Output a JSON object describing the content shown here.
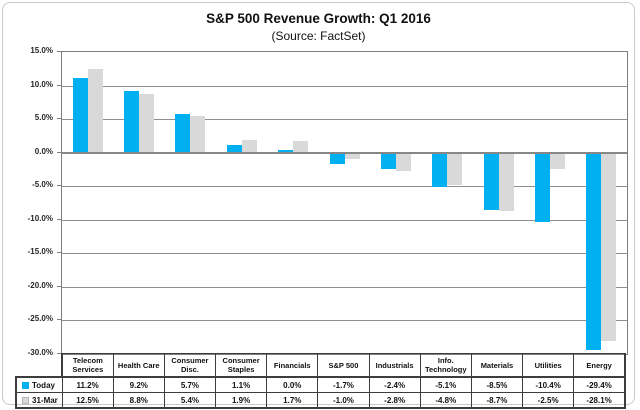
{
  "title": "S&P 500 Revenue Growth: Q1 2016",
  "subtitle": "(Source: FactSet)",
  "chart_data": {
    "type": "bar",
    "title": "S&P 500 Revenue Growth: Q1 2016",
    "subtitle": "(Source: FactSet)",
    "categories": [
      "Telecom Services",
      "Health Care",
      "Consumer Disc.",
      "Consumer Staples",
      "Financials",
      "S&P 500",
      "Industrials",
      "Info. Technology",
      "Materials",
      "Utilities",
      "Energy"
    ],
    "series": [
      {
        "name": "Today",
        "color": "#00B0F0",
        "values": [
          11.2,
          9.2,
          5.7,
          1.1,
          0.0,
          -1.7,
          -2.4,
          -5.1,
          -8.5,
          -10.4,
          -29.4
        ]
      },
      {
        "name": "31-Mar",
        "color": "#D9D9D9",
        "values": [
          12.5,
          8.8,
          5.4,
          1.9,
          1.7,
          -1.0,
          -2.8,
          -4.8,
          -8.7,
          -2.5,
          -28.1
        ]
      }
    ],
    "ylim": [
      -30,
      15
    ],
    "ytick_step": 5,
    "y_tick_labels": [
      "15.0%",
      "10.0%",
      "5.0%",
      "0.0%",
      "-5.0%",
      "-10.0%",
      "-15.0%",
      "-20.0%",
      "-25.0%",
      "-30.0%"
    ],
    "value_suffix": "%",
    "grid": true,
    "legend_position": "table-left",
    "data_table": true
  },
  "colors": {
    "bar_today": "#00B0F0",
    "bar_31mar": "#D9D9D9",
    "gridline": "#8f8f8f",
    "zero_line": "#878787",
    "plot_border": "#7f7f7f",
    "table_border": "#3d3d3d",
    "frame_border": "#c9c9c9"
  }
}
